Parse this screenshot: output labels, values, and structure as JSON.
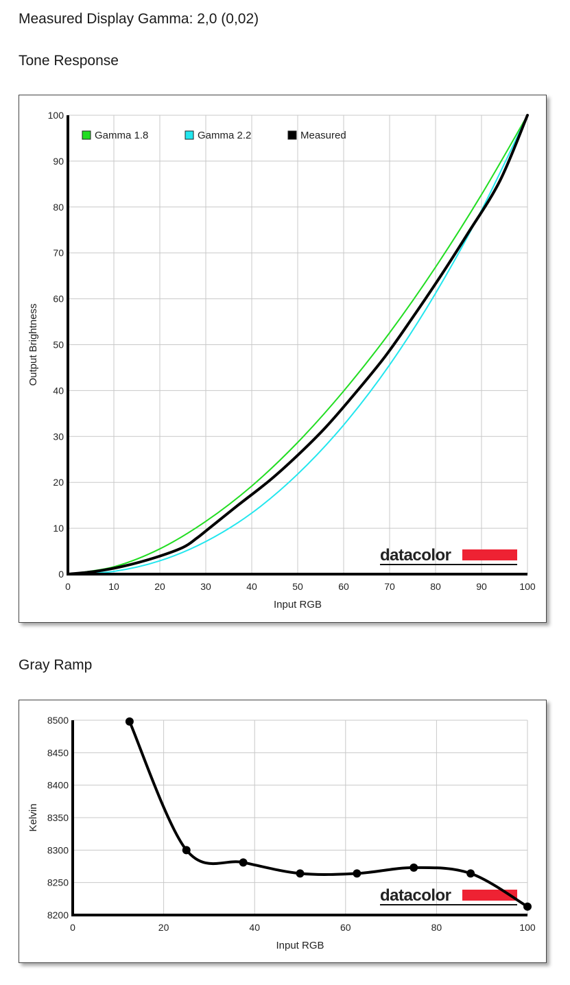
{
  "header": {
    "measured_gamma": "Measured Display Gamma: 2,0 (0,02)",
    "tone_section_title": "Tone Response",
    "gray_section_title": "Gray Ramp"
  },
  "logo_text": "datacolor",
  "colors": {
    "gamma18": "#22dd22",
    "gamma22": "#22e6ee",
    "measured": "#000000",
    "logo_red": "#ee2233",
    "grid": "#c8c8c8"
  },
  "chart_data": [
    {
      "type": "line",
      "xlabel": "Input RGB",
      "ylabel": "Output Brightness",
      "xlim": [
        0,
        100
      ],
      "ylim": [
        0,
        100
      ],
      "x_ticks": [
        0,
        10,
        20,
        30,
        40,
        50,
        60,
        70,
        80,
        90,
        100
      ],
      "y_ticks": [
        0,
        10,
        20,
        30,
        40,
        50,
        60,
        70,
        80,
        90,
        100
      ],
      "grid": true,
      "legend_position": "top-left",
      "series": [
        {
          "name": "Gamma 1.8",
          "color": "#22dd22",
          "x": [
            0,
            10,
            20,
            30,
            40,
            50,
            60,
            70,
            80,
            90,
            100
          ],
          "y": [
            0,
            1.6,
            5.5,
            11.5,
            19.2,
            28.7,
            39.9,
            52.6,
            66.9,
            82.7,
            100
          ]
        },
        {
          "name": "Gamma 2.2",
          "color": "#22e6ee",
          "x": [
            0,
            10,
            20,
            30,
            40,
            50,
            60,
            70,
            80,
            90,
            100
          ],
          "y": [
            0,
            0.6,
            2.9,
            7.1,
            13.3,
            21.8,
            32.5,
            45.6,
            61.2,
            79.3,
            100
          ]
        },
        {
          "name": "Measured",
          "color": "#000000",
          "x": [
            0,
            6,
            12,
            19,
            25,
            28,
            31,
            37,
            44,
            50,
            56,
            62,
            69,
            75,
            81,
            87,
            94,
            100
          ],
          "y": [
            0,
            0.6,
            1.7,
            3.6,
            5.8,
            7.8,
            10.2,
            15.0,
            20.5,
            25.9,
            31.9,
            38.8,
            47.4,
            55.9,
            64.8,
            74.2,
            85.7,
            100
          ]
        }
      ]
    },
    {
      "type": "line",
      "xlabel": "Input RGB",
      "ylabel": "Kelvin",
      "xlim": [
        0,
        100
      ],
      "ylim": [
        8200,
        8500
      ],
      "x_ticks": [
        0,
        20,
        40,
        60,
        80,
        100
      ],
      "y_ticks": [
        8200,
        8250,
        8300,
        8350,
        8400,
        8450,
        8500
      ],
      "grid": true,
      "series": [
        {
          "color": "#000000",
          "x": [
            12.5,
            25,
            37.5,
            50,
            62.5,
            75,
            87.5,
            100
          ],
          "y": [
            8498,
            8300,
            8281,
            8264,
            8264,
            8273,
            8264,
            8213
          ]
        }
      ]
    }
  ]
}
